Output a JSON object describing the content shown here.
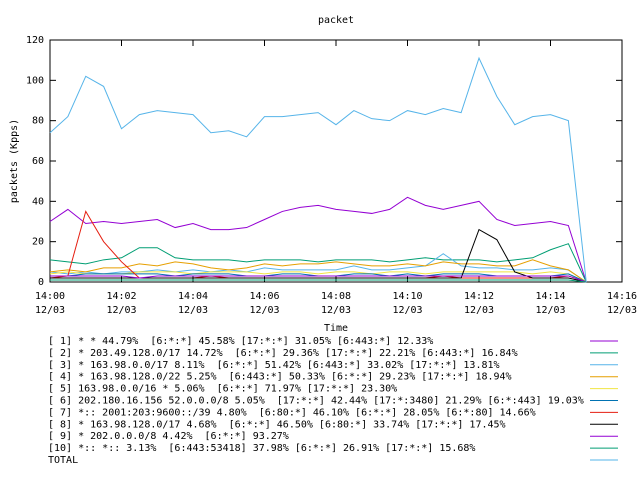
{
  "chart_data": {
    "type": "line",
    "title": "packet",
    "x_label": "Time",
    "y_label": "packets (Kpps)",
    "x": [
      "14:00:00",
      "14:00:30",
      "14:01:00",
      "14:01:30",
      "14:02:00",
      "14:02:30",
      "14:03:00",
      "14:03:30",
      "14:04:00",
      "14:04:30",
      "14:05:00",
      "14:05:30",
      "14:06:00",
      "14:06:30",
      "14:07:00",
      "14:07:30",
      "14:08:00",
      "14:08:30",
      "14:09:00",
      "14:09:30",
      "14:10:00",
      "14:10:30",
      "14:11:00",
      "14:11:30",
      "14:12:00",
      "14:12:30",
      "14:13:00",
      "14:13:30",
      "14:14:00",
      "14:14:30",
      "14:15:00"
    ],
    "xlim": [
      "14:00",
      "14:16"
    ],
    "xticks": [
      "14:00",
      "14:02",
      "14:04",
      "14:06",
      "14:08",
      "14:10",
      "14:12",
      "14:14",
      "14:16"
    ],
    "xtick_dates": [
      "12/03",
      "12/03",
      "12/03",
      "12/03",
      "12/03",
      "12/03",
      "12/03",
      "12/03",
      "12/03"
    ],
    "ylim": [
      0,
      120
    ],
    "yticks": [
      0,
      20,
      40,
      60,
      80,
      100,
      120
    ],
    "series": [
      {
        "name": "[ 1] * * 44.79%  [6:*:*] 45.58% [17:*:*] 31.05% [6:443:*] 12.33%",
        "color": "#9400d3",
        "values": [
          30,
          36,
          29,
          30,
          29,
          30,
          31,
          27,
          29,
          26,
          26,
          27,
          31,
          35,
          37,
          38,
          36,
          35,
          34,
          36,
          42,
          38,
          36,
          38,
          40,
          31,
          28,
          29,
          30,
          28,
          0
        ]
      },
      {
        "name": "[ 2] * 203.49.128.0/17 14.72%  [6:*:*] 29.36% [17:*:*] 22.21% [6:443:*] 16.84%",
        "color": "#009e73",
        "values": [
          11,
          10,
          9,
          11,
          12,
          17,
          17,
          12,
          11,
          11,
          11,
          10,
          11,
          11,
          11,
          10,
          11,
          11,
          11,
          10,
          11,
          12,
          11,
          11,
          11,
          10,
          11,
          12,
          16,
          19,
          0
        ]
      },
      {
        "name": "[ 3] * 163.98.0.0/17 8.11%  [6:*:*] 51.42% [6:443:*] 33.02% [17:*:*] 13.81%",
        "color": "#56b4e9",
        "values": [
          5,
          4,
          5,
          4,
          5,
          5,
          6,
          5,
          6,
          5,
          6,
          5,
          7,
          6,
          6,
          6,
          6,
          8,
          6,
          6,
          7,
          8,
          14,
          8,
          7,
          7,
          6,
          6,
          7,
          6,
          0
        ]
      },
      {
        "name": "[ 4] * 163.98.128.0/22 5.25%  [6:443:*] 50.33% [6:*:*] 29.23% [17:*:*] 18.94%",
        "color": "#e69f00",
        "values": [
          5,
          6,
          5,
          7,
          7,
          9,
          8,
          10,
          9,
          7,
          6,
          7,
          9,
          8,
          9,
          9,
          10,
          9,
          8,
          8,
          9,
          8,
          10,
          9,
          9,
          8,
          8,
          11,
          8,
          6,
          0
        ]
      },
      {
        "name": "[ 5] 163.98.0.0/16 * 5.06%  [6:*:*] 71.97% [17:*:*] 23.30%",
        "color": "#f0e442",
        "values": [
          4,
          5,
          4,
          4,
          4,
          5,
          5,
          5,
          4,
          5,
          5,
          5,
          4,
          5,
          5,
          4,
          5,
          5,
          4,
          5,
          5,
          4,
          5,
          5,
          5,
          5,
          5,
          4,
          5,
          4,
          0
        ]
      },
      {
        "name": "[ 6] 202.180.16.156 52.0.0.0/8 5.05%  [17:*:*] 42.44% [17:*:3480] 21.29% [6:*:443] 19.03%",
        "color": "#0072b2",
        "values": [
          3,
          3,
          4,
          4,
          4,
          4,
          4,
          3,
          4,
          4,
          4,
          3,
          3,
          4,
          4,
          3,
          3,
          4,
          4,
          3,
          4,
          3,
          4,
          4,
          4,
          3,
          3,
          3,
          3,
          4,
          0
        ]
      },
      {
        "name": "[ 7] *:: 2001:203:9600::/39 4.80%  [6:80:*] 46.10% [6:*:*] 28.05% [6:*:80] 14.66%",
        "color": "#e51e10",
        "values": [
          2,
          3,
          35,
          20,
          10,
          2,
          2,
          2,
          2,
          3,
          2,
          2,
          2,
          2,
          2,
          2,
          2,
          2,
          2,
          2,
          2,
          2,
          3,
          2,
          2,
          2,
          2,
          2,
          2,
          3,
          0
        ]
      },
      {
        "name": "[ 8] * 163.98.128.0/17 4.68%  [6:*:*] 46.50% [6:80:*] 33.74% [17:*:*] 17.45%",
        "color": "#000000",
        "values": [
          2,
          2,
          2,
          2,
          2,
          2,
          2,
          2,
          2,
          2,
          2,
          2,
          2,
          2,
          2,
          2,
          2,
          2,
          2,
          2,
          2,
          2,
          2,
          2,
          26,
          21,
          5,
          2,
          2,
          2,
          0
        ]
      },
      {
        "name": "[ 9] * 202.0.0.0/8 4.42%  [6:*:*] 93.27%",
        "color": "#9400d3",
        "values": [
          3,
          3,
          3,
          3,
          3,
          2,
          3,
          3,
          3,
          3,
          3,
          3,
          3,
          3,
          3,
          3,
          3,
          3,
          3,
          3,
          3,
          3,
          3,
          3,
          3,
          3,
          3,
          3,
          3,
          3,
          0
        ]
      },
      {
        "name": "[10] *:: *:: 3.13%  [6:443:53418] 37.98% [6:*:*] 26.91% [17:*:*] 15.68%",
        "color": "#009e73",
        "values": [
          1,
          1,
          1,
          1,
          1,
          1,
          1,
          1,
          1,
          1,
          1,
          1,
          1,
          1,
          1,
          1,
          1,
          1,
          1,
          1,
          1,
          1,
          1,
          1,
          1,
          1,
          1,
          1,
          1,
          1,
          0
        ]
      },
      {
        "name": "TOTAL",
        "color": "#56b4e9",
        "values": [
          74,
          82,
          102,
          97,
          76,
          83,
          85,
          84,
          83,
          74,
          75,
          72,
          82,
          82,
          83,
          84,
          78,
          85,
          81,
          80,
          85,
          83,
          86,
          84,
          111,
          92,
          78,
          82,
          83,
          80,
          0
        ]
      }
    ]
  }
}
